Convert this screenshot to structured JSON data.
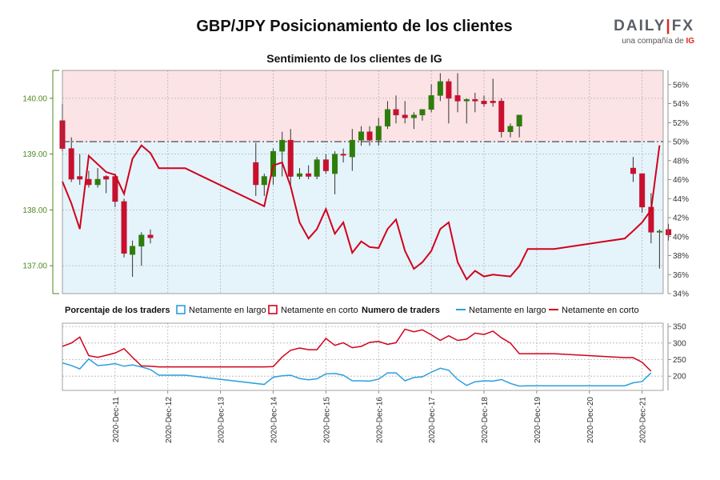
{
  "chart_data": [
    {
      "type": "candlestick+line",
      "title": "GBP/JPY Posicionamiento de los clientes",
      "subtitle": "Sentimiento de los clientes de IG",
      "price_ticks": [
        "137.00",
        "138.00",
        "139.00",
        "140.00"
      ],
      "price_range": [
        136.5,
        140.5
      ],
      "pct_ticks": [
        "34%",
        "36%",
        "38%",
        "40%",
        "42%",
        "44%",
        "46%",
        "48%",
        "50%",
        "52%",
        "54%",
        "56%"
      ],
      "pct_range": [
        34,
        57.5
      ],
      "pct_reference": 50,
      "x_range": [
        0,
        11.4
      ],
      "x_ticks": [
        {
          "t": 1,
          "label": "2020-Dec-11"
        },
        {
          "t": 2,
          "label": "2020-Dec-12"
        },
        {
          "t": 3,
          "label": "2020-Dec-13"
        },
        {
          "t": 4,
          "label": "2020-Dec-14"
        },
        {
          "t": 5,
          "label": "2020-Dec-15"
        },
        {
          "t": 6,
          "label": "2020-Dec-16"
        },
        {
          "t": 7,
          "label": "2020-Dec-17"
        },
        {
          "t": 8,
          "label": "2020-Dec-18"
        },
        {
          "t": 9,
          "label": "2020-Dec-19"
        },
        {
          "t": 10,
          "label": "2020-Dec-20"
        },
        {
          "t": 11,
          "label": "2020-Dec-21"
        }
      ],
      "candles": [
        {
          "t": 0.0,
          "o": 139.6,
          "h": 139.9,
          "l": 139.05,
          "c": 139.1
        },
        {
          "t": 0.17,
          "o": 139.1,
          "h": 139.3,
          "l": 138.5,
          "c": 138.55
        },
        {
          "t": 0.33,
          "o": 138.6,
          "h": 139.0,
          "l": 138.45,
          "c": 138.55
        },
        {
          "t": 0.5,
          "o": 138.55,
          "h": 138.7,
          "l": 138.4,
          "c": 138.45
        },
        {
          "t": 0.67,
          "o": 138.45,
          "h": 138.75,
          "l": 138.4,
          "c": 138.55
        },
        {
          "t": 0.83,
          "o": 138.6,
          "h": 138.62,
          "l": 138.3,
          "c": 138.55
        },
        {
          "t": 1.0,
          "o": 138.6,
          "h": 138.65,
          "l": 138.05,
          "c": 138.15
        },
        {
          "t": 1.17,
          "o": 138.15,
          "h": 138.2,
          "l": 137.15,
          "c": 137.22
        },
        {
          "t": 1.33,
          "o": 137.2,
          "h": 137.45,
          "l": 136.8,
          "c": 137.35
        },
        {
          "t": 1.5,
          "o": 137.35,
          "h": 137.6,
          "l": 137.0,
          "c": 137.55
        },
        {
          "t": 1.67,
          "o": 137.55,
          "h": 137.65,
          "l": 137.4,
          "c": 137.5
        },
        {
          "t": 3.67,
          "o": 138.85,
          "h": 139.2,
          "l": 138.25,
          "c": 138.45
        },
        {
          "t": 3.83,
          "o": 138.45,
          "h": 138.65,
          "l": 138.25,
          "c": 138.6
        },
        {
          "t": 4.0,
          "o": 138.6,
          "h": 139.1,
          "l": 138.45,
          "c": 139.05
        },
        {
          "t": 4.17,
          "o": 139.05,
          "h": 139.4,
          "l": 138.6,
          "c": 139.25
        },
        {
          "t": 4.33,
          "o": 139.25,
          "h": 139.45,
          "l": 138.4,
          "c": 138.6
        },
        {
          "t": 4.5,
          "o": 138.6,
          "h": 138.75,
          "l": 138.55,
          "c": 138.65
        },
        {
          "t": 4.67,
          "o": 138.65,
          "h": 138.8,
          "l": 138.55,
          "c": 138.6
        },
        {
          "t": 4.83,
          "o": 138.6,
          "h": 138.95,
          "l": 138.55,
          "c": 138.9
        },
        {
          "t": 5.0,
          "o": 138.9,
          "h": 139.0,
          "l": 138.65,
          "c": 138.7
        },
        {
          "t": 5.17,
          "o": 138.65,
          "h": 139.05,
          "l": 138.28,
          "c": 139.0
        },
        {
          "t": 5.33,
          "o": 139.0,
          "h": 139.1,
          "l": 138.85,
          "c": 138.98
        },
        {
          "t": 5.5,
          "o": 138.95,
          "h": 139.45,
          "l": 138.7,
          "c": 139.25
        },
        {
          "t": 5.67,
          "o": 139.25,
          "h": 139.5,
          "l": 139.15,
          "c": 139.4
        },
        {
          "t": 5.83,
          "o": 139.4,
          "h": 139.5,
          "l": 139.15,
          "c": 139.25
        },
        {
          "t": 6.0,
          "o": 139.25,
          "h": 139.65,
          "l": 139.15,
          "c": 139.5
        },
        {
          "t": 6.17,
          "o": 139.5,
          "h": 139.95,
          "l": 139.45,
          "c": 139.8
        },
        {
          "t": 6.33,
          "o": 139.8,
          "h": 140.05,
          "l": 139.55,
          "c": 139.7
        },
        {
          "t": 6.5,
          "o": 139.7,
          "h": 139.95,
          "l": 139.55,
          "c": 139.65
        },
        {
          "t": 6.67,
          "o": 139.65,
          "h": 139.75,
          "l": 139.45,
          "c": 139.7
        },
        {
          "t": 6.83,
          "o": 139.7,
          "h": 139.8,
          "l": 139.6,
          "c": 139.8
        },
        {
          "t": 7.0,
          "o": 139.8,
          "h": 140.25,
          "l": 139.75,
          "c": 140.05
        },
        {
          "t": 7.17,
          "o": 140.05,
          "h": 140.45,
          "l": 139.95,
          "c": 140.3
        },
        {
          "t": 7.33,
          "o": 140.3,
          "h": 140.35,
          "l": 139.55,
          "c": 140.0
        },
        {
          "t": 7.5,
          "o": 140.05,
          "h": 140.45,
          "l": 139.75,
          "c": 139.95
        },
        {
          "t": 7.67,
          "o": 139.95,
          "h": 140.0,
          "l": 139.55,
          "c": 139.98
        },
        {
          "t": 7.83,
          "o": 139.98,
          "h": 140.1,
          "l": 139.75,
          "c": 139.95
        },
        {
          "t": 8.0,
          "o": 139.95,
          "h": 140.05,
          "l": 139.85,
          "c": 139.9
        },
        {
          "t": 8.17,
          "o": 139.95,
          "h": 140.35,
          "l": 139.85,
          "c": 139.92
        },
        {
          "t": 8.33,
          "o": 139.95,
          "h": 140.0,
          "l": 139.3,
          "c": 139.4
        },
        {
          "t": 8.5,
          "o": 139.4,
          "h": 139.55,
          "l": 139.3,
          "c": 139.5
        },
        {
          "t": 8.67,
          "o": 139.5,
          "h": 139.7,
          "l": 139.3,
          "c": 139.7
        },
        {
          "t": 10.83,
          "o": 138.75,
          "h": 138.95,
          "l": 138.5,
          "c": 138.65
        },
        {
          "t": 11.0,
          "o": 138.65,
          "h": 138.65,
          "l": 137.95,
          "c": 138.05
        },
        {
          "t": 11.17,
          "o": 138.05,
          "h": 138.3,
          "l": 137.4,
          "c": 137.6
        },
        {
          "t": 11.33,
          "o": 137.6,
          "h": 137.65,
          "l": 136.95,
          "c": 137.62
        },
        {
          "t": 11.5,
          "o": 137.65,
          "h": 137.75,
          "l": 137.45,
          "c": 137.55
        }
      ],
      "pct_net_short": [
        {
          "t": 0.0,
          "v": 45.8
        },
        {
          "t": 0.17,
          "v": 43.5
        },
        {
          "t": 0.33,
          "v": 40.8
        },
        {
          "t": 0.5,
          "v": 48.5
        },
        {
          "t": 0.83,
          "v": 46.8
        },
        {
          "t": 1.0,
          "v": 46.5
        },
        {
          "t": 1.17,
          "v": 44.5
        },
        {
          "t": 1.33,
          "v": 48.2
        },
        {
          "t": 1.5,
          "v": 49.6
        },
        {
          "t": 1.67,
          "v": 48.8
        },
        {
          "t": 1.83,
          "v": 47.2
        },
        {
          "t": 2.33,
          "v": 47.2
        },
        {
          "t": 3.83,
          "v": 43.2
        },
        {
          "t": 4.0,
          "v": 47.5
        },
        {
          "t": 4.17,
          "v": 47.8
        },
        {
          "t": 4.33,
          "v": 45.3
        },
        {
          "t": 4.5,
          "v": 41.5
        },
        {
          "t": 4.67,
          "v": 39.8
        },
        {
          "t": 4.83,
          "v": 40.8
        },
        {
          "t": 5.0,
          "v": 42.9
        },
        {
          "t": 5.17,
          "v": 40.3
        },
        {
          "t": 5.33,
          "v": 41.5
        },
        {
          "t": 5.5,
          "v": 38.3
        },
        {
          "t": 5.67,
          "v": 39.5
        },
        {
          "t": 5.83,
          "v": 38.9
        },
        {
          "t": 6.0,
          "v": 38.8
        },
        {
          "t": 6.17,
          "v": 40.8
        },
        {
          "t": 6.33,
          "v": 41.8
        },
        {
          "t": 6.5,
          "v": 38.5
        },
        {
          "t": 6.67,
          "v": 36.6
        },
        {
          "t": 6.83,
          "v": 37.3
        },
        {
          "t": 7.0,
          "v": 38.5
        },
        {
          "t": 7.17,
          "v": 40.8
        },
        {
          "t": 7.33,
          "v": 41.5
        },
        {
          "t": 7.5,
          "v": 37.3
        },
        {
          "t": 7.67,
          "v": 35.5
        },
        {
          "t": 7.83,
          "v": 36.4
        },
        {
          "t": 8.0,
          "v": 35.8
        },
        {
          "t": 8.17,
          "v": 36.0
        },
        {
          "t": 8.33,
          "v": 35.9
        },
        {
          "t": 8.5,
          "v": 35.8
        },
        {
          "t": 8.67,
          "v": 36.9
        },
        {
          "t": 8.83,
          "v": 38.7
        },
        {
          "t": 9.33,
          "v": 38.7
        },
        {
          "t": 10.67,
          "v": 39.8
        },
        {
          "t": 10.83,
          "v": 40.6
        },
        {
          "t": 11.0,
          "v": 41.5
        },
        {
          "t": 11.17,
          "v": 42.8
        },
        {
          "t": 11.33,
          "v": 49.6
        }
      ],
      "legend": [
        {
          "label": "Netamente en largo",
          "color": "#2b9fdd"
        },
        {
          "label": "Netamente en corto",
          "color": "#d0021b"
        }
      ],
      "legend_title": "Porcentaje de los traders",
      "colors": {
        "bull": "#2e7d0b",
        "bear": "#c8102e",
        "short_zone": "#fbe3e6",
        "long_zone": "#e5f3fb",
        "axis_green": "#4e8a23",
        "ref_line": "#7a6e6e"
      }
    },
    {
      "type": "line",
      "legend_title": "Numero de traders",
      "y_ticks": [
        "200",
        "250",
        "300",
        "350"
      ],
      "y_range": [
        157,
        360
      ],
      "legend": [
        {
          "label": "Netamente en largo",
          "color": "#2b9fdd"
        },
        {
          "label": "Netamente en corto",
          "color": "#d0021b"
        }
      ],
      "series": [
        {
          "name": "Netamente en largo",
          "color": "#2b9fdd",
          "points": [
            [
              0.0,
              240
            ],
            [
              0.17,
              232
            ],
            [
              0.33,
              222
            ],
            [
              0.5,
              252
            ],
            [
              0.67,
              232
            ],
            [
              0.83,
              234
            ],
            [
              1.0,
              238
            ],
            [
              1.17,
              230
            ],
            [
              1.33,
              234
            ],
            [
              1.5,
              228
            ],
            [
              1.67,
              220
            ],
            [
              1.83,
              203
            ],
            [
              2.33,
              203
            ],
            [
              3.83,
              175
            ],
            [
              4.0,
              197
            ],
            [
              4.17,
              201
            ],
            [
              4.33,
              203
            ],
            [
              4.5,
              193
            ],
            [
              4.67,
              189
            ],
            [
              4.83,
              192
            ],
            [
              5.0,
              207
            ],
            [
              5.17,
              208
            ],
            [
              5.33,
              203
            ],
            [
              5.5,
              186
            ],
            [
              5.67,
              186
            ],
            [
              5.83,
              185
            ],
            [
              6.0,
              191
            ],
            [
              6.17,
              210
            ],
            [
              6.33,
              210
            ],
            [
              6.5,
              186
            ],
            [
              6.67,
              196
            ],
            [
              6.83,
              198
            ],
            [
              7.0,
              212
            ],
            [
              7.17,
              224
            ],
            [
              7.33,
              218
            ],
            [
              7.5,
              190
            ],
            [
              7.67,
              172
            ],
            [
              7.83,
              183
            ],
            [
              8.0,
              186
            ],
            [
              8.17,
              185
            ],
            [
              8.33,
              190
            ],
            [
              8.5,
              178
            ],
            [
              8.67,
              170
            ],
            [
              8.83,
              171
            ],
            [
              9.33,
              171
            ],
            [
              10.67,
              171
            ],
            [
              10.83,
              180
            ],
            [
              11.0,
              184
            ],
            [
              11.17,
              210
            ]
          ]
        },
        {
          "name": "Netamente en corto",
          "color": "#d0021b",
          "points": [
            [
              0.0,
              290
            ],
            [
              0.17,
              300
            ],
            [
              0.33,
              318
            ],
            [
              0.5,
              262
            ],
            [
              0.67,
              257
            ],
            [
              0.83,
              263
            ],
            [
              1.0,
              270
            ],
            [
              1.17,
              283
            ],
            [
              1.33,
              257
            ],
            [
              1.5,
              231
            ],
            [
              1.67,
              230
            ],
            [
              1.83,
              228
            ],
            [
              2.33,
              228
            ],
            [
              3.83,
              228
            ],
            [
              4.0,
              229
            ],
            [
              4.17,
              258
            ],
            [
              4.33,
              278
            ],
            [
              4.5,
              285
            ],
            [
              4.67,
              280
            ],
            [
              4.83,
              280
            ],
            [
              5.0,
              314
            ],
            [
              5.17,
              293
            ],
            [
              5.33,
              301
            ],
            [
              5.5,
              286
            ],
            [
              5.67,
              290
            ],
            [
              5.83,
              302
            ],
            [
              6.0,
              305
            ],
            [
              6.17,
              296
            ],
            [
              6.33,
              301
            ],
            [
              6.5,
              342
            ],
            [
              6.67,
              334
            ],
            [
              6.83,
              340
            ],
            [
              7.0,
              325
            ],
            [
              7.17,
              308
            ],
            [
              7.33,
              322
            ],
            [
              7.5,
              308
            ],
            [
              7.67,
              312
            ],
            [
              7.83,
              330
            ],
            [
              8.0,
              326
            ],
            [
              8.17,
              336
            ],
            [
              8.33,
              316
            ],
            [
              8.5,
              300
            ],
            [
              8.67,
              268
            ],
            [
              8.83,
              268
            ],
            [
              9.33,
              268
            ],
            [
              10.67,
              256
            ],
            [
              10.83,
              256
            ],
            [
              11.0,
              242
            ],
            [
              11.17,
              215
            ]
          ]
        }
      ]
    }
  ],
  "branding": {
    "word_a": "DAILY",
    "word_sep": "|",
    "word_b": "FX",
    "sub": "una compañía de",
    "sub_brand": "IG"
  }
}
